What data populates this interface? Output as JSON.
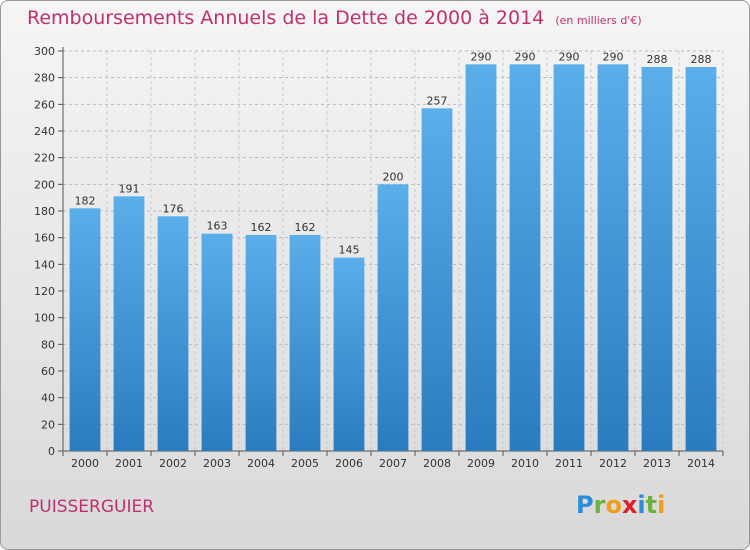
{
  "chart_data": {
    "type": "bar",
    "title": "Remboursements Annuels de la Dette de 2000 à 2014",
    "unit_label": "(en milliers d'€)",
    "categories": [
      "2000",
      "2001",
      "2002",
      "2003",
      "2004",
      "2005",
      "2006",
      "2007",
      "2008",
      "2009",
      "2010",
      "2011",
      "2012",
      "2013",
      "2014"
    ],
    "values": [
      182,
      191,
      176,
      163,
      162,
      162,
      145,
      200,
      257,
      290,
      290,
      290,
      290,
      288,
      288
    ],
    "ylim": [
      0,
      300
    ],
    "yticks": [
      0,
      20,
      40,
      60,
      80,
      100,
      120,
      140,
      160,
      180,
      200,
      220,
      240,
      260,
      280,
      300
    ],
    "xlabel": "",
    "ylabel": "",
    "grid": true,
    "bar_color": "#4a9ee0"
  },
  "footer": {
    "commune": "PUISSERGUIER",
    "logo": "Proxiti"
  }
}
